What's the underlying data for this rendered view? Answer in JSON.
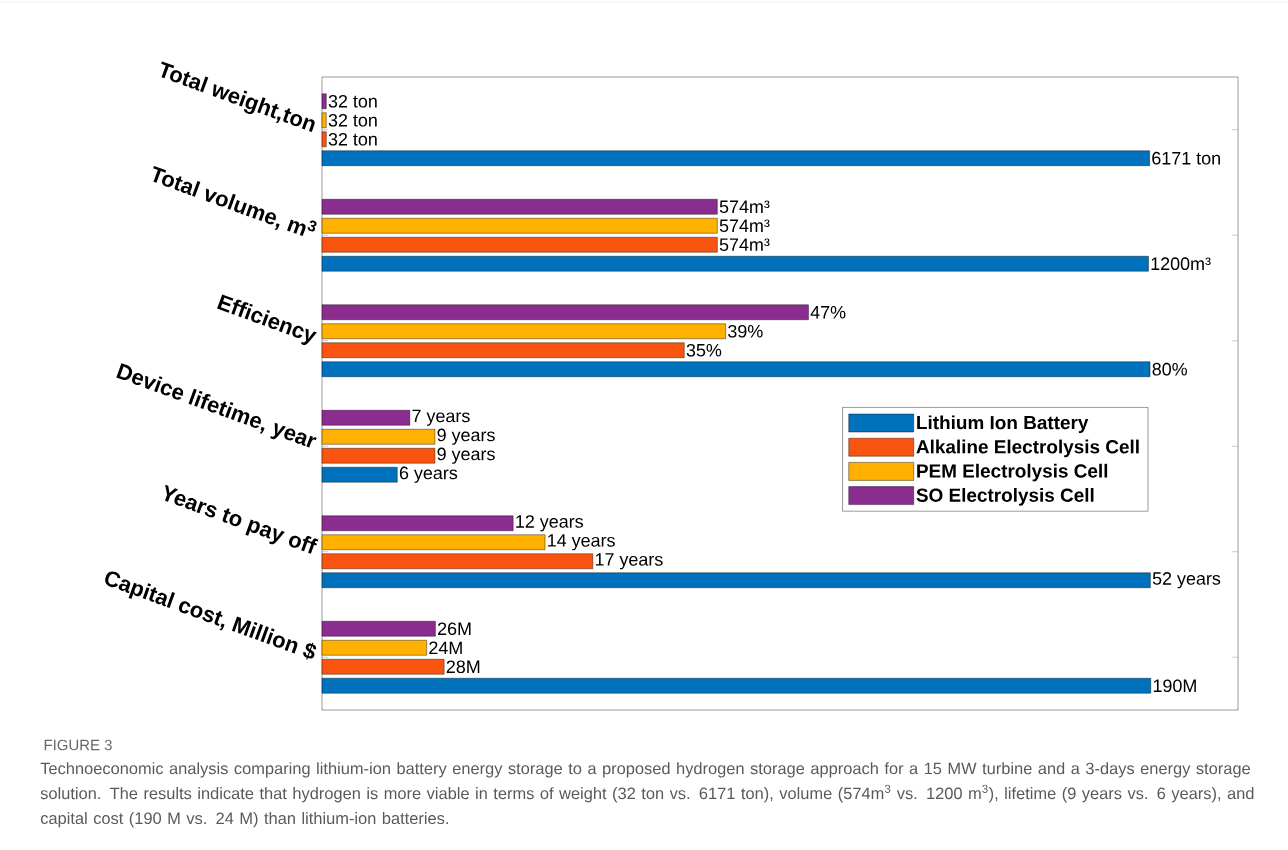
{
  "chart_data": [
    {
      "type": "bar",
      "orientation": "horizontal",
      "categories": [
        "Total weight,ton"
      ],
      "xlim": [
        0,
        6830
      ],
      "tick_labels": "y",
      "series": [
        {
          "color": "#0072BD",
          "values": [
            6171
          ],
          "value_labels": [
            "6171 ton"
          ]
        },
        {
          "color": "#FA5411",
          "values": [
            32
          ],
          "value_labels": [
            "32 ton"
          ]
        },
        {
          "color": "#FFB000",
          "values": [
            32
          ],
          "value_labels": [
            "32 ton"
          ]
        },
        {
          "color": "#8B2C8F",
          "values": [
            32
          ],
          "value_labels": [
            "32 ton"
          ]
        }
      ]
    },
    {
      "type": "bar",
      "orientation": "horizontal",
      "categories": [
        "Total volume, m$^{3}$"
      ],
      "xlim": [
        0,
        1330
      ],
      "tick_labels": "y",
      "series": [
        {
          "color": "#0072BD",
          "values": [
            1200
          ],
          "value_labels": [
            "1200m³"
          ]
        },
        {
          "color": "#FA5411",
          "values": [
            574
          ],
          "value_labels": [
            "574m³"
          ]
        },
        {
          "color": "#FFB000",
          "values": [
            574
          ],
          "value_labels": [
            "574m³"
          ]
        },
        {
          "color": "#8B2C8F",
          "values": [
            574
          ],
          "value_labels": [
            "574m³"
          ]
        }
      ]
    },
    {
      "type": "bar",
      "orientation": "horizontal",
      "categories": [
        "Efficiency"
      ],
      "xlim": [
        0,
        88.5
      ],
      "tick_labels": "y",
      "series": [
        {
          "color": "#0072BD",
          "values": [
            80
          ],
          "value_labels": [
            "80%"
          ]
        },
        {
          "color": "#FA5411",
          "values": [
            35
          ],
          "value_labels": [
            "35%"
          ]
        },
        {
          "color": "#FFB000",
          "values": [
            39
          ],
          "value_labels": [
            "39%"
          ]
        },
        {
          "color": "#8B2C8F",
          "values": [
            47
          ],
          "value_labels": [
            "47%"
          ]
        }
      ]
    },
    {
      "type": "bar",
      "orientation": "horizontal",
      "categories": [
        "Device lifetime, year"
      ],
      "xlim": [
        0,
        73
      ],
      "tick_labels": "y",
      "legend": "right",
      "series": [
        {
          "name": "Lithium Ion Battery",
          "color": "#0072BD",
          "values": [
            6
          ],
          "value_labels": [
            "6 years"
          ]
        },
        {
          "name": "Alkaline Electrolysis Cell",
          "color": "#FA5411",
          "values": [
            9
          ],
          "value_labels": [
            "9 years"
          ]
        },
        {
          "name": "PEM Electrolysis Cell",
          "color": "#FFB000",
          "values": [
            9
          ],
          "value_labels": [
            "9 years"
          ]
        },
        {
          "name": "SO Electrolysis Cell",
          "color": "#8B2C8F",
          "values": [
            7
          ],
          "value_labels": [
            "7 years"
          ]
        }
      ]
    },
    {
      "type": "bar",
      "orientation": "horizontal",
      "categories": [
        "Years to pay off"
      ],
      "xlim": [
        0,
        57.5
      ],
      "tick_labels": "y",
      "series": [
        {
          "color": "#0072BD",
          "values": [
            52
          ],
          "value_labels": [
            "52 years"
          ]
        },
        {
          "color": "#FA5411",
          "values": [
            17
          ],
          "value_labels": [
            "17 years"
          ]
        },
        {
          "color": "#FFB000",
          "values": [
            14
          ],
          "value_labels": [
            "14 years"
          ]
        },
        {
          "color": "#8B2C8F",
          "values": [
            12
          ],
          "value_labels": [
            "12 years"
          ]
        }
      ]
    },
    {
      "type": "bar",
      "orientation": "horizontal",
      "categories": [
        "Capital cost, Million $"
      ],
      "xlim": [
        0,
        210
      ],
      "tick_labels": "y",
      "series": [
        {
          "color": "#0072BD",
          "values": [
            190
          ],
          "value_labels": [
            "190M"
          ]
        },
        {
          "color": "#FA5411",
          "values": [
            28
          ],
          "value_labels": [
            "28M"
          ]
        },
        {
          "color": "#FFB000",
          "values": [
            24
          ],
          "value_labels": [
            "24M"
          ]
        },
        {
          "color": "#8B2C8F",
          "values": [
            26
          ],
          "value_labels": [
            "26M"
          ]
        }
      ],
      "annotations": [
        "FIGURE 3",
        "Technoeconomic analysis comparing lithium-ion battery energy storage to a proposed hydrogen storage approach for a 15 MW turbine and a 3-days energy storage solution. The results indicate that hydrogen is more viable in terms of weight (32 ton vs. 6171 ton), volume (574m$^{3}$ vs. 1200 m$^{3}$), lifetime (9 years vs. 6 years), and capital cost (190 M vs. 24 M) than lithium-ion batteries."
      ]
    }
  ]
}
